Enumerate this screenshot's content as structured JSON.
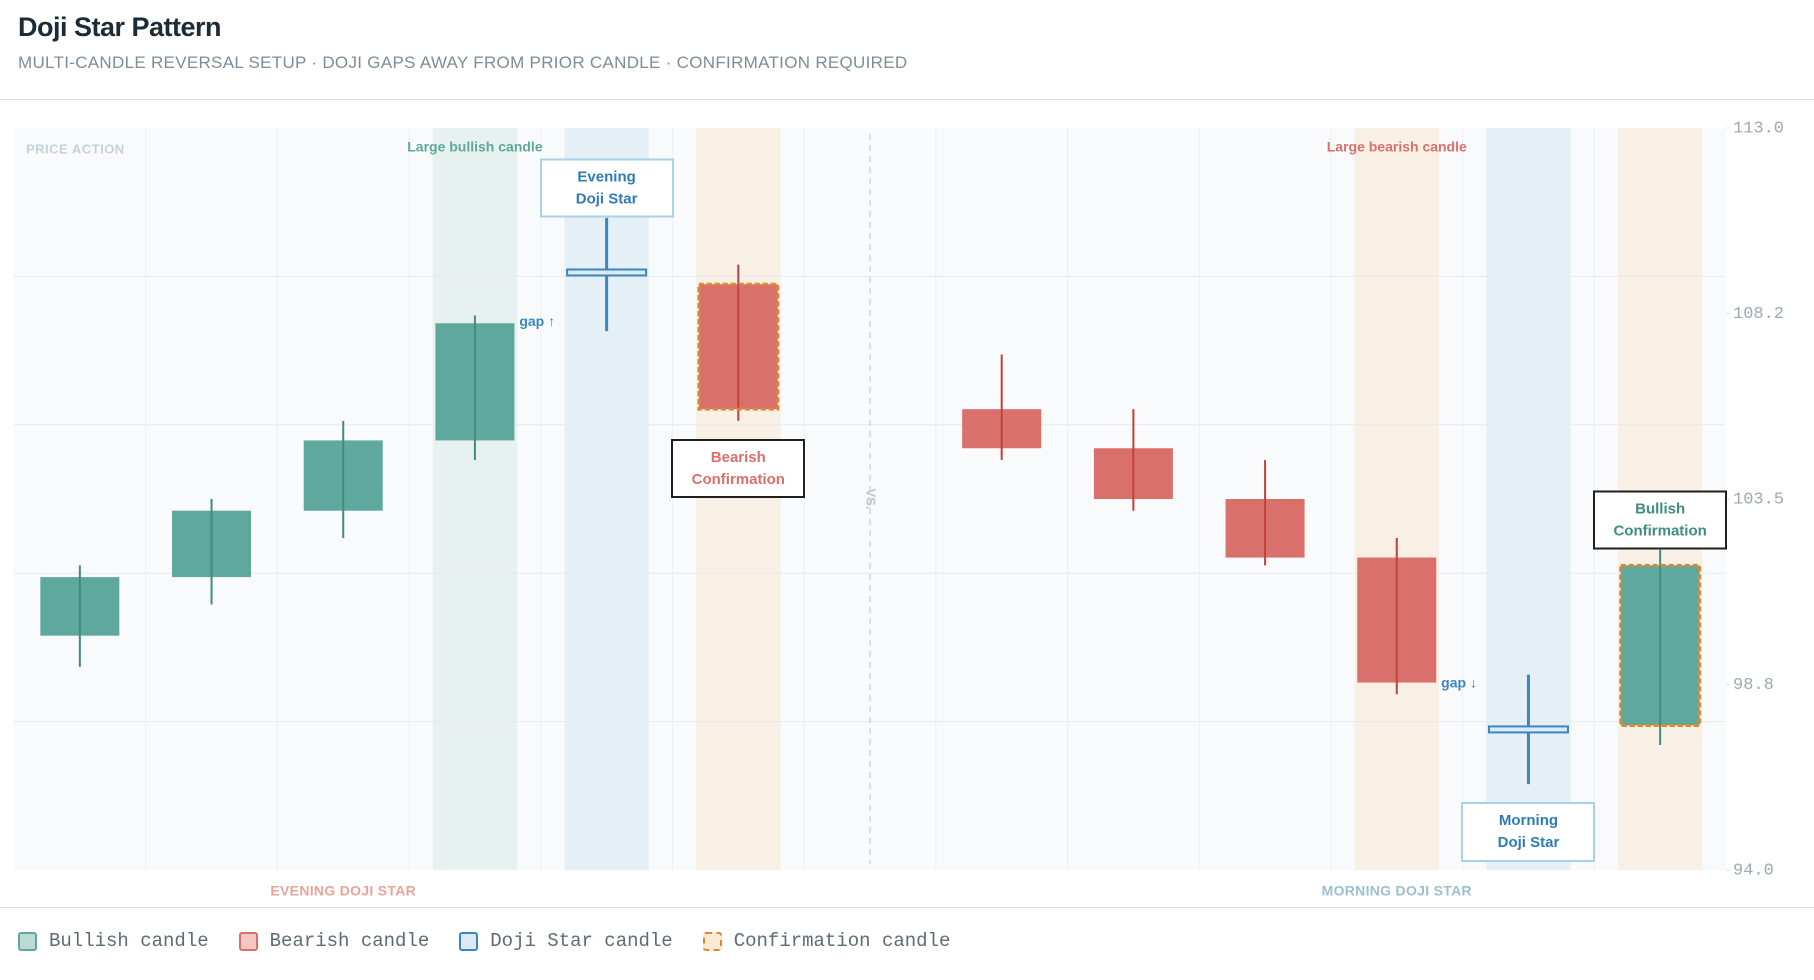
{
  "chart_data": {
    "type": "candlestick",
    "title": "Doji Star Pattern",
    "subtitle": "MULTI-CANDLE REVERSAL SETUP · DOJI GAPS AWAY FROM PRIOR CANDLE · CONFIRMATION REQUIRED",
    "panel_label": "PRICE ACTION",
    "categories": [
      null,
      null,
      null,
      null,
      null,
      null,
      null,
      null,
      null,
      null,
      null,
      null,
      null
    ],
    "open": [
      100.0,
      101.5,
      103.2,
      105.0,
      109.3,
      109.0,
      null,
      105.8,
      104.8,
      103.5,
      102.0,
      97.6,
      97.7
    ],
    "high": [
      101.8,
      103.5,
      105.5,
      108.2,
      110.7,
      109.5,
      null,
      107.2,
      105.8,
      104.5,
      102.5,
      99.0,
      102.2
    ],
    "low": [
      99.2,
      100.8,
      102.5,
      104.5,
      107.8,
      105.5,
      null,
      104.5,
      103.2,
      101.8,
      98.5,
      96.2,
      97.2
    ],
    "close": [
      101.5,
      103.2,
      105.0,
      108.0,
      109.3,
      105.8,
      null,
      104.8,
      103.5,
      102.0,
      98.8,
      97.6,
      101.8
    ],
    "colors": [
      "#5fa89e",
      "#5fa89e",
      "#5fa89e",
      "#5fa89e",
      "#3a87c0",
      "#d9706c",
      null,
      "#d9706c",
      "#d9706c",
      "#d9706c",
      "#d9706c",
      "#3a87c0",
      "#5fa89e"
    ],
    "confirmation_indices": [
      5,
      12
    ],
    "confirmation_color": "#d98a2e",
    "highlights": [
      {
        "index": 3,
        "color": "#e7f1f0"
      },
      {
        "index": 4,
        "color": "#e5eff6"
      },
      {
        "index": 5,
        "color": "#f8efe5"
      },
      {
        "index": 10,
        "color": "#f8efe5"
      },
      {
        "index": 11,
        "color": "#e5eff6"
      },
      {
        "index": 12,
        "color": "#f8efe5"
      }
    ],
    "ylim": [
      94.0,
      113.0
    ],
    "yticks": [
      {
        "value": 94.0,
        "label": "94.0"
      },
      {
        "value": 98.75,
        "label": "98.8"
      },
      103.5,
      {
        "value": 108.25,
        "label": "108.2"
      },
      {
        "value": 113.0,
        "label": "113.0"
      }
    ],
    "ygrid": [
      97.8,
      101.6,
      105.4,
      109.2
    ],
    "annotations": [
      {
        "text": "Large bullish candle",
        "index": 3,
        "placement": "top",
        "color": "#5fa89e"
      },
      {
        "text": "Evening Doji Star",
        "index": 4,
        "placement": "above",
        "color": "#2f7bb5",
        "border": "#a9d2ea"
      },
      {
        "text": "gap ↑",
        "index": 4,
        "placement": "left-low",
        "color": "#3a87c0"
      },
      {
        "text": "Bearish Confirmation",
        "index": 5,
        "placement": "below",
        "color": "#d9706c",
        "border": "#1f1f1f"
      },
      {
        "text": "VS.",
        "index": 6,
        "placement": "separator",
        "color": "#b9c4cc"
      },
      {
        "text": "Large bearish candle",
        "index": 10,
        "placement": "top",
        "color": "#d9706c"
      },
      {
        "text": "gap ↓",
        "index": 11,
        "placement": "left-high",
        "color": "#3a87c0"
      },
      {
        "text": "Morning Doji Star",
        "index": 11,
        "placement": "below",
        "color": "#2f7bb5",
        "border": "#a9d2ea"
      },
      {
        "text": "Bullish Confirmation",
        "index": 12,
        "placement": "above",
        "color": "#3f8c80",
        "border": "#1f1f1f"
      }
    ],
    "groups": [
      {
        "text": "EVENING DOJI STAR",
        "index": 2,
        "color": "#e8a597"
      },
      {
        "text": "MORNING DOJI STAR",
        "index": 10,
        "color": "#9dbfcf"
      }
    ],
    "legend": [
      {
        "name": "Bullish candle",
        "color": "#5fa89e",
        "fill": "#bcd9d5",
        "style": "solid"
      },
      {
        "name": "Bearish candle",
        "color": "#d9706c",
        "fill": "#f3c8c2",
        "style": "solid"
      },
      {
        "name": "Doji Star candle",
        "color": "#3a87c0",
        "fill": "#dde9f3",
        "style": "solid"
      },
      {
        "name": "Confirmation candle",
        "color": "#d98a2e",
        "fill": "#fbe9d8",
        "style": "dashed"
      }
    ]
  }
}
